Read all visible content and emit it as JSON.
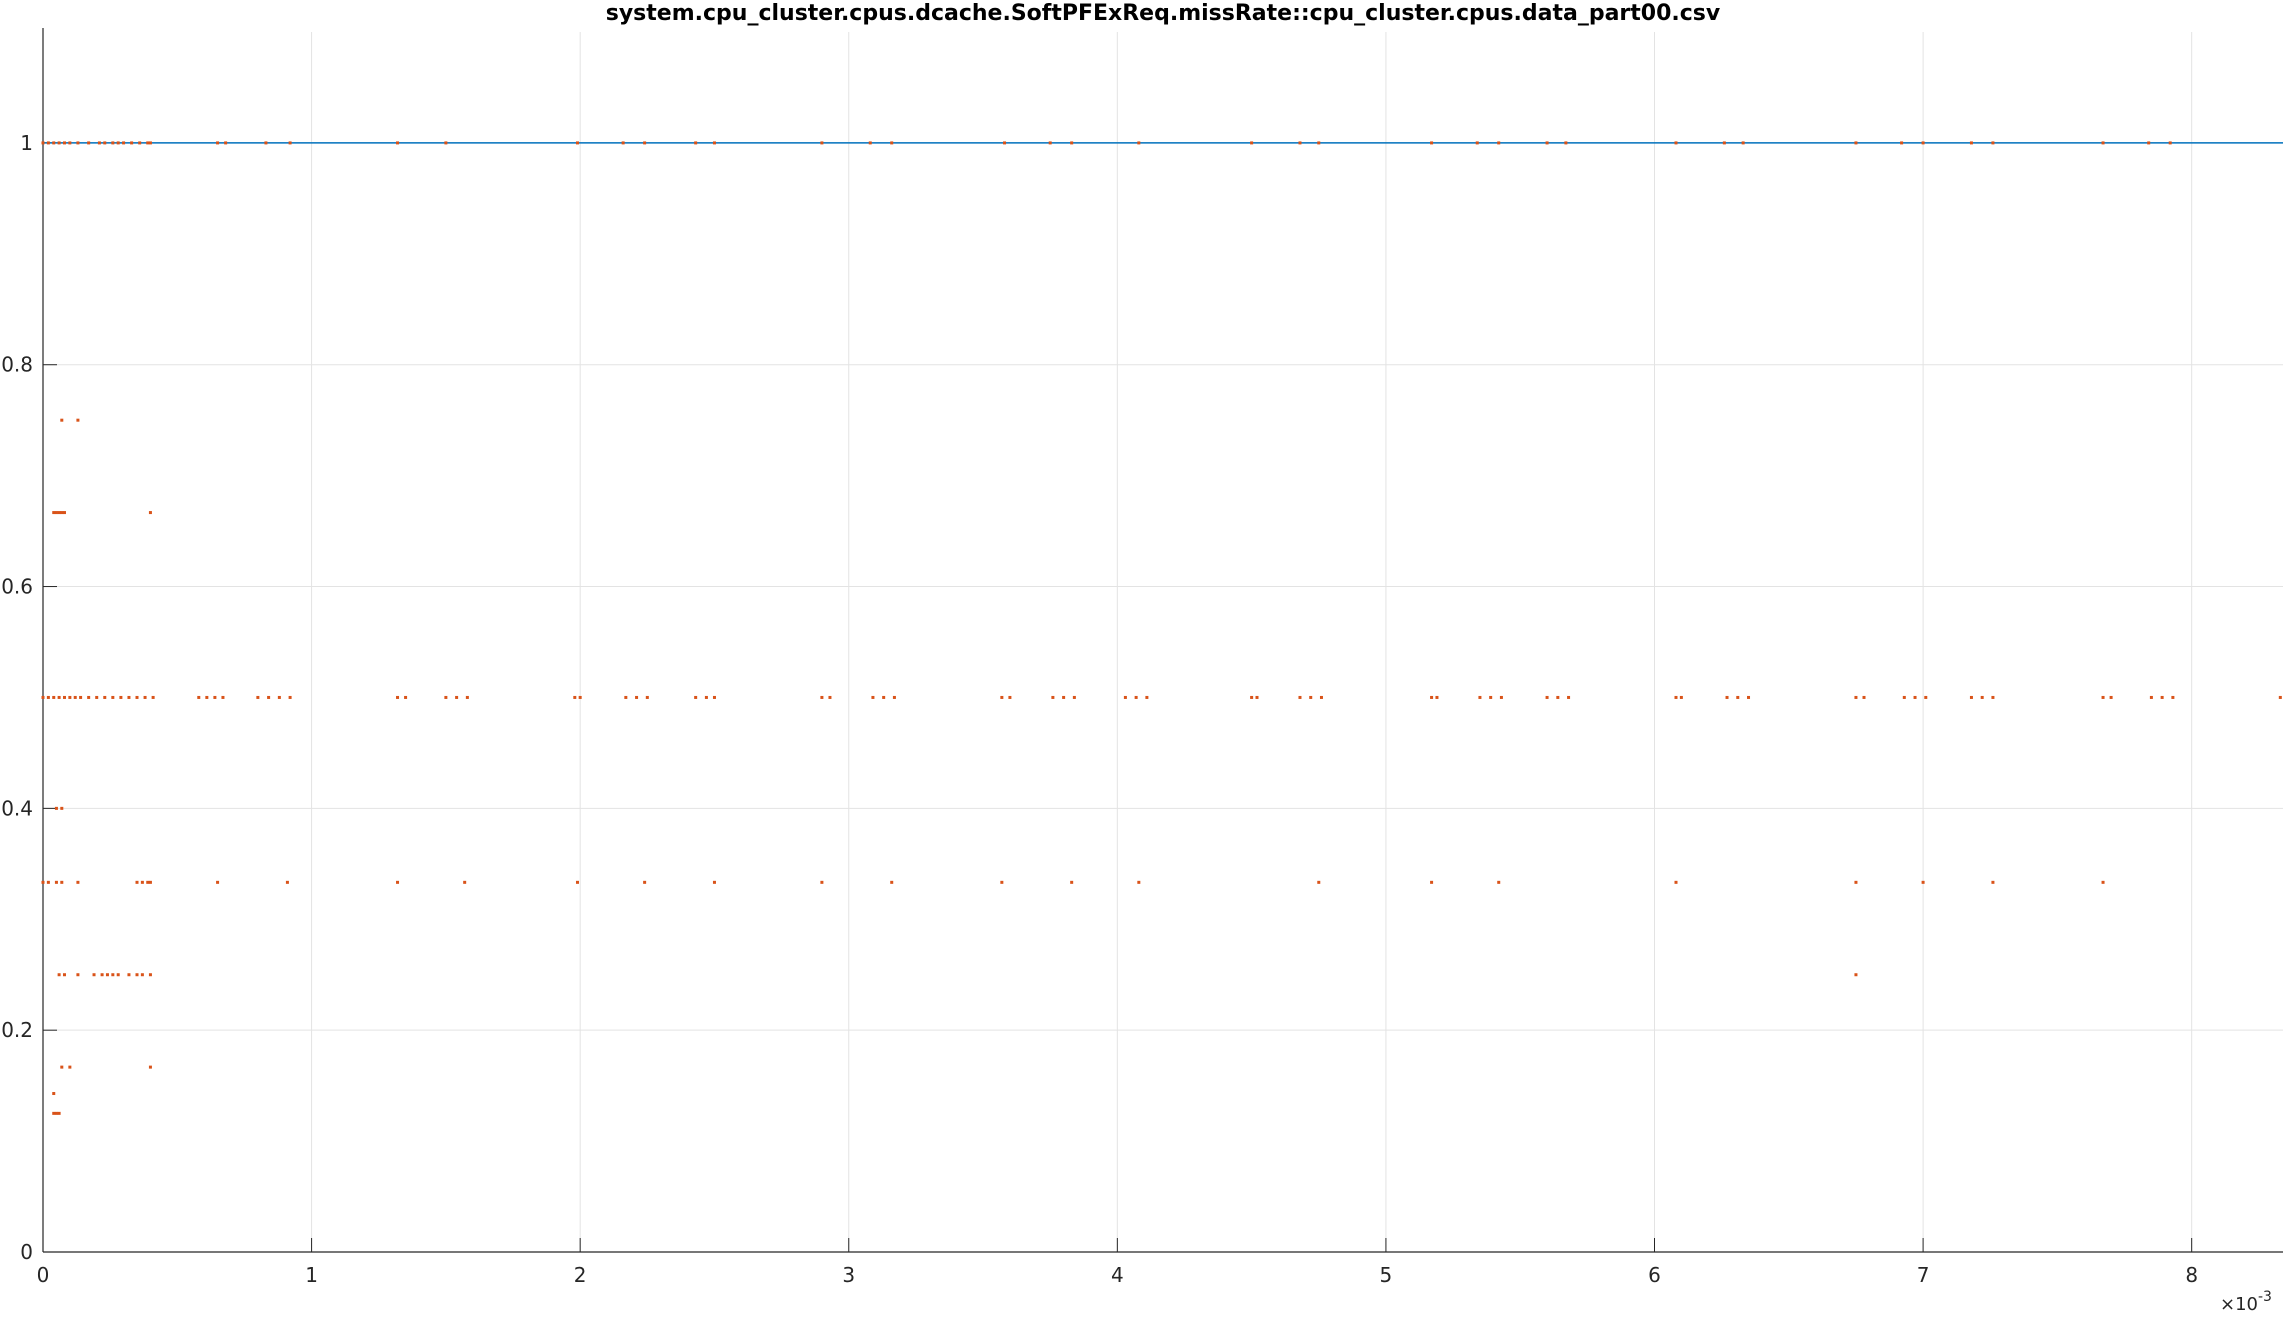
{
  "chart_data": {
    "type": "scatter",
    "title": "system.cpu_cluster.cpus.dcache.SoftPFExReq.missRate::cpu_cluster.cpus.data_part00.csv",
    "xlabel": "",
    "ylabel": "",
    "xlim": [
      0,
      0.00834
    ],
    "ylim": [
      0,
      1.1
    ],
    "x_ticks": [
      0,
      0.001,
      0.002,
      0.003,
      0.004,
      0.005,
      0.006,
      0.007,
      0.008
    ],
    "x_tick_labels": [
      "0",
      "1",
      "2",
      "3",
      "4",
      "5",
      "6",
      "7",
      "8"
    ],
    "x_exponent_label": "×10",
    "x_exponent_power": "-3",
    "y_ticks": [
      0,
      0.2,
      0.4,
      0.6,
      0.8,
      1
    ],
    "y_tick_labels": [
      "0",
      "0.2",
      "0.4",
      "0.6",
      "0.8",
      "1"
    ],
    "grid": true,
    "colors": {
      "line": "#0072BD",
      "points": "#D95319",
      "grid": "#e3e3e3",
      "axis": "#262626"
    },
    "series": [
      {
        "type": "line",
        "x": [
          0,
          0.00834
        ],
        "y": [
          1,
          1
        ]
      },
      {
        "type": "scatter",
        "points": [
          [
            0.0,
            1
          ],
          [
            2e-05,
            1
          ],
          [
            4e-05,
            1
          ],
          [
            6e-05,
            1
          ],
          [
            8e-05,
            1
          ],
          [
            0.0001,
            1
          ],
          [
            0.00013,
            1
          ],
          [
            0.00017,
            1
          ],
          [
            0.00021,
            1
          ],
          [
            0.00023,
            1
          ],
          [
            0.00026,
            1
          ],
          [
            0.00028,
            1
          ],
          [
            0.0003,
            1
          ],
          [
            0.00033,
            1
          ],
          [
            0.00036,
            1
          ],
          [
            0.00039,
            1
          ],
          [
            0.0004,
            1
          ],
          [
            0.00065,
            1
          ],
          [
            0.00068,
            1
          ],
          [
            0.00083,
            1
          ],
          [
            0.00092,
            1
          ],
          [
            0.00132,
            1
          ],
          [
            0.0015,
            1
          ],
          [
            0.00199,
            1
          ],
          [
            0.00216,
            1
          ],
          [
            0.00224,
            1
          ],
          [
            0.00243,
            1
          ],
          [
            0.0025,
            1
          ],
          [
            0.0029,
            1
          ],
          [
            0.00308,
            1
          ],
          [
            0.00316,
            1
          ],
          [
            0.00358,
            1
          ],
          [
            0.00375,
            1
          ],
          [
            0.00383,
            1
          ],
          [
            0.00408,
            1
          ],
          [
            0.0045,
            1
          ],
          [
            0.00468,
            1
          ],
          [
            0.00475,
            1
          ],
          [
            0.00517,
            1
          ],
          [
            0.00534,
            1
          ],
          [
            0.00542,
            1
          ],
          [
            0.0056,
            1
          ],
          [
            0.00567,
            1
          ],
          [
            0.00608,
            1
          ],
          [
            0.00626,
            1
          ],
          [
            0.00633,
            1
          ],
          [
            0.00675,
            1
          ],
          [
            0.00692,
            1
          ],
          [
            0.007,
            1
          ],
          [
            0.00718,
            1
          ],
          [
            0.00726,
            1
          ],
          [
            0.00767,
            1
          ],
          [
            0.00784,
            1
          ],
          [
            0.00792,
            1
          ],
          [
            7e-05,
            0.75
          ],
          [
            0.00013,
            0.75
          ],
          [
            4e-05,
            0.6667
          ],
          [
            5e-05,
            0.6667
          ],
          [
            6e-05,
            0.6667
          ],
          [
            7e-05,
            0.6667
          ],
          [
            8e-05,
            0.6667
          ],
          [
            0.0004,
            0.6667
          ],
          [
            0.0,
            0.5
          ],
          [
            2e-05,
            0.5
          ],
          [
            4e-05,
            0.5
          ],
          [
            6e-05,
            0.5
          ],
          [
            8e-05,
            0.5
          ],
          [
            0.0001,
            0.5
          ],
          [
            0.00012,
            0.5
          ],
          [
            0.00014,
            0.5
          ],
          [
            0.00017,
            0.5
          ],
          [
            0.0002,
            0.5
          ],
          [
            0.00023,
            0.5
          ],
          [
            0.00026,
            0.5
          ],
          [
            0.00029,
            0.5
          ],
          [
            0.00032,
            0.5
          ],
          [
            0.00035,
            0.5
          ],
          [
            0.00038,
            0.5
          ],
          [
            0.00041,
            0.5
          ],
          [
            0.00058,
            0.5
          ],
          [
            0.00061,
            0.5
          ],
          [
            0.00064,
            0.5
          ],
          [
            0.00067,
            0.5
          ],
          [
            0.0008,
            0.5
          ],
          [
            0.00084,
            0.5
          ],
          [
            0.00088,
            0.5
          ],
          [
            0.00092,
            0.5
          ],
          [
            0.00132,
            0.5
          ],
          [
            0.00135,
            0.5
          ],
          [
            0.0015,
            0.5
          ],
          [
            0.00154,
            0.5
          ],
          [
            0.00158,
            0.5
          ],
          [
            0.00198,
            0.5
          ],
          [
            0.002,
            0.5
          ],
          [
            0.00217,
            0.5
          ],
          [
            0.00221,
            0.5
          ],
          [
            0.00225,
            0.5
          ],
          [
            0.00243,
            0.5
          ],
          [
            0.00247,
            0.5
          ],
          [
            0.0025,
            0.5
          ],
          [
            0.0029,
            0.5
          ],
          [
            0.00293,
            0.5
          ],
          [
            0.00309,
            0.5
          ],
          [
            0.00313,
            0.5
          ],
          [
            0.00317,
            0.5
          ],
          [
            0.00357,
            0.5
          ],
          [
            0.0036,
            0.5
          ],
          [
            0.00376,
            0.5
          ],
          [
            0.0038,
            0.5
          ],
          [
            0.00384,
            0.5
          ],
          [
            0.00403,
            0.5
          ],
          [
            0.00407,
            0.5
          ],
          [
            0.00411,
            0.5
          ],
          [
            0.0045,
            0.5
          ],
          [
            0.00452,
            0.5
          ],
          [
            0.00468,
            0.5
          ],
          [
            0.00472,
            0.5
          ],
          [
            0.00476,
            0.5
          ],
          [
            0.00517,
            0.5
          ],
          [
            0.00519,
            0.5
          ],
          [
            0.00535,
            0.5
          ],
          [
            0.00539,
            0.5
          ],
          [
            0.00543,
            0.5
          ],
          [
            0.0056,
            0.5
          ],
          [
            0.00564,
            0.5
          ],
          [
            0.00568,
            0.5
          ],
          [
            0.00608,
            0.5
          ],
          [
            0.0061,
            0.5
          ],
          [
            0.00627,
            0.5
          ],
          [
            0.00631,
            0.5
          ],
          [
            0.00635,
            0.5
          ],
          [
            0.00675,
            0.5
          ],
          [
            0.00678,
            0.5
          ],
          [
            0.00693,
            0.5
          ],
          [
            0.00697,
            0.5
          ],
          [
            0.00701,
            0.5
          ],
          [
            0.00718,
            0.5
          ],
          [
            0.00722,
            0.5
          ],
          [
            0.00726,
            0.5
          ],
          [
            0.00767,
            0.5
          ],
          [
            0.0077,
            0.5
          ],
          [
            0.00785,
            0.5
          ],
          [
            0.00789,
            0.5
          ],
          [
            0.00793,
            0.5
          ],
          [
            0.00833,
            0.5
          ],
          [
            5e-05,
            0.4
          ],
          [
            7e-05,
            0.4
          ],
          [
            0.0,
            0.3333
          ],
          [
            2e-05,
            0.3333
          ],
          [
            5e-05,
            0.3333
          ],
          [
            7e-05,
            0.3333
          ],
          [
            0.00013,
            0.3333
          ],
          [
            0.00035,
            0.3333
          ],
          [
            0.00037,
            0.3333
          ],
          [
            0.00039,
            0.3333
          ],
          [
            0.0004,
            0.3333
          ],
          [
            0.00065,
            0.3333
          ],
          [
            0.00091,
            0.3333
          ],
          [
            0.00132,
            0.3333
          ],
          [
            0.00157,
            0.3333
          ],
          [
            0.00199,
            0.3333
          ],
          [
            0.00224,
            0.3333
          ],
          [
            0.0025,
            0.3333
          ],
          [
            0.0029,
            0.3333
          ],
          [
            0.00316,
            0.3333
          ],
          [
            0.00357,
            0.3333
          ],
          [
            0.00383,
            0.3333
          ],
          [
            0.00408,
            0.3333
          ],
          [
            0.00475,
            0.3333
          ],
          [
            0.00517,
            0.3333
          ],
          [
            0.00542,
            0.3333
          ],
          [
            0.00608,
            0.3333
          ],
          [
            0.00675,
            0.3333
          ],
          [
            0.007,
            0.3333
          ],
          [
            0.00726,
            0.3333
          ],
          [
            0.00767,
            0.3333
          ],
          [
            6e-05,
            0.25
          ],
          [
            8e-05,
            0.25
          ],
          [
            0.00013,
            0.25
          ],
          [
            0.00019,
            0.25
          ],
          [
            0.00022,
            0.25
          ],
          [
            0.00024,
            0.25
          ],
          [
            0.00026,
            0.25
          ],
          [
            0.00028,
            0.25
          ],
          [
            0.00032,
            0.25
          ],
          [
            0.00035,
            0.25
          ],
          [
            0.00037,
            0.25
          ],
          [
            0.0004,
            0.25
          ],
          [
            0.00675,
            0.25
          ],
          [
            7e-05,
            0.1667
          ],
          [
            0.0001,
            0.1667
          ],
          [
            0.0004,
            0.1667
          ],
          [
            4e-05,
            0.1429
          ],
          [
            4e-05,
            0.125
          ],
          [
            5e-05,
            0.125
          ],
          [
            6e-05,
            0.125
          ]
        ]
      }
    ]
  }
}
